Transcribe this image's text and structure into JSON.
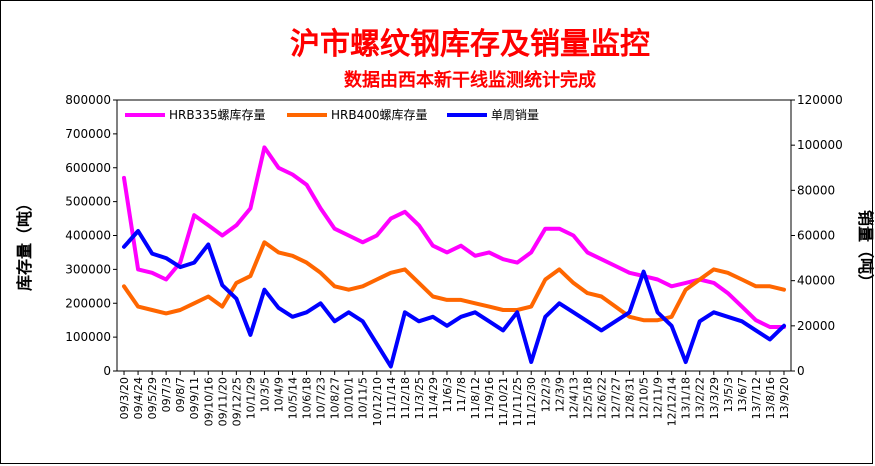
{
  "chart_data": {
    "type": "line",
    "title": "沪市螺纹钢库存及销量监控",
    "subtitle": "数据由西本新干线监测统计完成",
    "ylabel_left": "库存量（吨）",
    "ylabel_right": "销量（吨）",
    "ylim_left": [
      0,
      800000
    ],
    "ylim_right": [
      0,
      120000
    ],
    "yticks_left": [
      "800000",
      "700000",
      "600000",
      "500000",
      "400000",
      "300000",
      "200000",
      "100000",
      "0"
    ],
    "yticks_right": [
      "120000",
      "100000",
      "80000",
      "60000",
      "40000",
      "20000",
      "0"
    ],
    "categories": [
      "09/3/20",
      "09/4/24",
      "09/5/29",
      "09/7/3",
      "09/8/7",
      "09/9/11",
      "09/10/16",
      "09/11/20",
      "09/12/25",
      "10/1/29",
      "10/3/5",
      "10/4/9",
      "10/5/14",
      "10/6/18",
      "10/7/23",
      "10/8/27",
      "10/10/1",
      "10/11/5",
      "10/12/10",
      "11/1/14",
      "11/2/18",
      "11/3/25",
      "11/4/29",
      "11/6/3",
      "11/7/8",
      "11/8/12",
      "11/9/16",
      "11/10/21",
      "11/11/25",
      "11/12/30",
      "12/2/3",
      "12/3/9",
      "12/4/13",
      "12/5/18",
      "12/6/22",
      "12/7/27",
      "12/8/31",
      "12/10/5",
      "12/11/9",
      "12/12/14",
      "13/1/18",
      "13/2/22",
      "13/3/29",
      "13/5/3",
      "13/6/7",
      "13/7/12",
      "13/8/16",
      "13/9/20"
    ],
    "legend_position": "top",
    "series": [
      {
        "name": "HRB335螺库存量",
        "axis": "left",
        "color": "#ff00ff",
        "values": [
          570000,
          300000,
          290000,
          270000,
          320000,
          460000,
          430000,
          400000,
          430000,
          480000,
          660000,
          600000,
          580000,
          550000,
          480000,
          420000,
          400000,
          380000,
          400000,
          450000,
          470000,
          430000,
          370000,
          350000,
          370000,
          340000,
          350000,
          330000,
          320000,
          350000,
          420000,
          420000,
          400000,
          350000,
          330000,
          310000,
          290000,
          280000,
          270000,
          250000,
          260000,
          270000,
          260000,
          230000,
          190000,
          150000,
          130000,
          130000
        ]
      },
      {
        "name": "HRB400螺库存量",
        "axis": "left",
        "color": "#ff6600",
        "values": [
          250000,
          190000,
          180000,
          170000,
          180000,
          200000,
          220000,
          190000,
          260000,
          280000,
          380000,
          350000,
          340000,
          320000,
          290000,
          250000,
          240000,
          250000,
          270000,
          290000,
          300000,
          260000,
          220000,
          210000,
          210000,
          200000,
          190000,
          180000,
          180000,
          190000,
          270000,
          300000,
          260000,
          230000,
          220000,
          190000,
          160000,
          150000,
          150000,
          160000,
          240000,
          270000,
          300000,
          290000,
          270000,
          250000,
          250000,
          240000
        ]
      },
      {
        "name": "单周销量",
        "axis": "right",
        "color": "#0000ff",
        "values": [
          55000,
          62000,
          52000,
          50000,
          46000,
          48000,
          56000,
          38000,
          32000,
          16000,
          36000,
          28000,
          24000,
          26000,
          30000,
          22000,
          26000,
          22000,
          12000,
          2000,
          26000,
          22000,
          24000,
          20000,
          24000,
          26000,
          22000,
          18000,
          26000,
          4000,
          24000,
          30000,
          26000,
          22000,
          18000,
          22000,
          26000,
          44000,
          26000,
          20000,
          4000,
          22000,
          26000,
          24000,
          22000,
          18000,
          14000,
          20000
        ]
      }
    ]
  }
}
